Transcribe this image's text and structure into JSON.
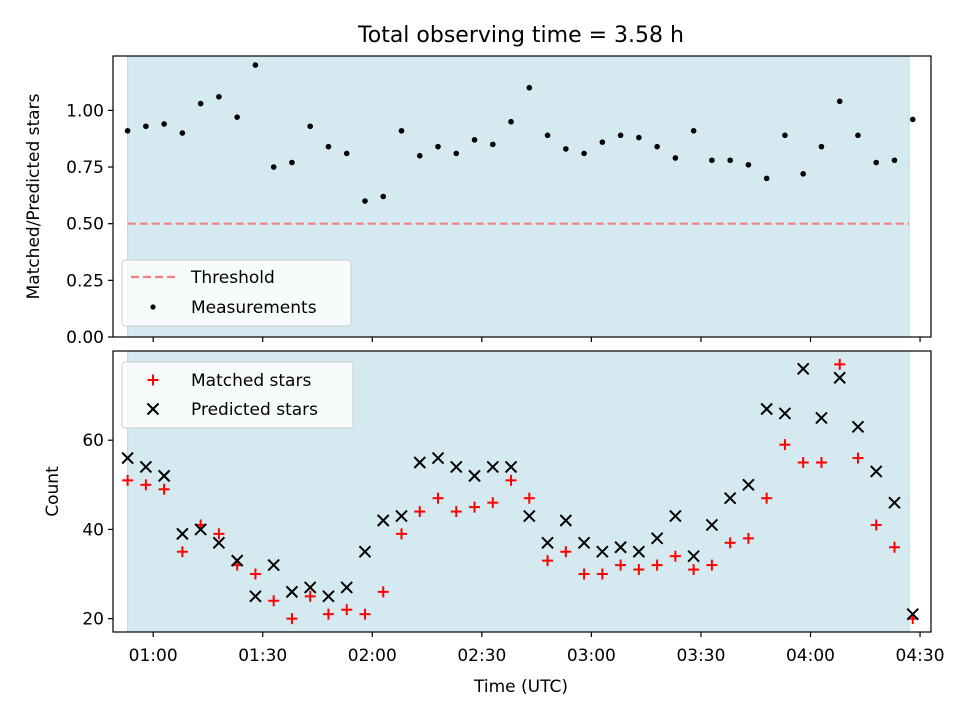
{
  "title": "Total observing time = 3.58 h",
  "colors": {
    "span": "#d4eaf0",
    "threshold": "#f08080",
    "measure": "#000000",
    "matched": "#ff0000",
    "predicted": "#000000"
  },
  "chart_data": [
    {
      "type": "scatter",
      "ylabel": "Matched/Predicted stars",
      "ylim": [
        0,
        1.24
      ],
      "yticks": [
        0.0,
        0.25,
        0.5,
        0.75,
        1.0
      ],
      "ytick_labels": [
        "0.00",
        "0.25",
        "0.50",
        "0.75",
        "1.00"
      ],
      "xlim": [
        "00:49",
        "04:33"
      ],
      "observing_span": [
        "00:53",
        "04:27"
      ],
      "threshold": 0.5,
      "legend_position": "lower-left",
      "legend": [
        "Threshold",
        "Measurements"
      ],
      "x": [
        "00:53",
        "00:58",
        "01:03",
        "01:08",
        "01:13",
        "01:18",
        "01:23",
        "01:28",
        "01:33",
        "01:38",
        "01:43",
        "01:48",
        "01:53",
        "01:58",
        "02:03",
        "02:08",
        "02:13",
        "02:18",
        "02:23",
        "02:28",
        "02:33",
        "02:38",
        "02:43",
        "02:48",
        "02:53",
        "02:58",
        "03:03",
        "03:08",
        "03:13",
        "03:18",
        "03:23",
        "03:28",
        "03:33",
        "03:38",
        "03:43",
        "03:48",
        "03:53",
        "03:58",
        "04:03",
        "04:08",
        "04:13",
        "04:18",
        "04:23",
        "04:28"
      ],
      "series": [
        {
          "name": "Measurements",
          "values": [
            0.91,
            0.93,
            0.94,
            0.9,
            1.03,
            1.06,
            0.97,
            1.2,
            0.75,
            0.77,
            0.93,
            0.84,
            0.81,
            0.6,
            0.62,
            0.91,
            0.8,
            0.84,
            0.81,
            0.87,
            0.85,
            0.95,
            1.1,
            0.89,
            0.83,
            0.81,
            0.86,
            0.89,
            0.88,
            0.84,
            0.79,
            0.91,
            0.78,
            0.78,
            0.76,
            0.7,
            0.89,
            0.72,
            0.84,
            1.04,
            0.89,
            0.77,
            0.78,
            0.96
          ]
        }
      ]
    },
    {
      "type": "scatter",
      "ylabel": "Count",
      "xlabel": "Time (UTC)",
      "ylim": [
        17,
        80
      ],
      "yticks": [
        20,
        40,
        60
      ],
      "xlim": [
        "00:49",
        "04:33"
      ],
      "xticks": [
        "01:00",
        "01:30",
        "02:00",
        "02:30",
        "03:00",
        "03:30",
        "04:00",
        "04:30"
      ],
      "legend_position": "upper-left",
      "legend": [
        "Matched stars",
        "Predicted stars"
      ],
      "x": [
        "00:53",
        "00:58",
        "01:03",
        "01:08",
        "01:13",
        "01:18",
        "01:23",
        "01:28",
        "01:33",
        "01:38",
        "01:43",
        "01:48",
        "01:53",
        "01:58",
        "02:03",
        "02:08",
        "02:13",
        "02:18",
        "02:23",
        "02:28",
        "02:33",
        "02:38",
        "02:43",
        "02:48",
        "02:53",
        "02:58",
        "03:03",
        "03:08",
        "03:13",
        "03:18",
        "03:23",
        "03:28",
        "03:33",
        "03:38",
        "03:43",
        "03:48",
        "03:53",
        "03:58",
        "04:03",
        "04:08",
        "04:13",
        "04:18",
        "04:23",
        "04:28"
      ],
      "series": [
        {
          "name": "Matched stars",
          "values": [
            51,
            50,
            49,
            35,
            41,
            39,
            32,
            30,
            24,
            20,
            25,
            21,
            22,
            21,
            26,
            39,
            44,
            47,
            44,
            45,
            46,
            51,
            47,
            33,
            35,
            30,
            30,
            32,
            31,
            32,
            34,
            31,
            32,
            37,
            38,
            47,
            59,
            55,
            55,
            77,
            56,
            41,
            36,
            20
          ]
        },
        {
          "name": "Predicted stars",
          "values": [
            56,
            54,
            52,
            39,
            40,
            37,
            33,
            25,
            32,
            26,
            27,
            25,
            27,
            35,
            42,
            43,
            55,
            56,
            54,
            52,
            54,
            54,
            43,
            37,
            42,
            37,
            35,
            36,
            35,
            38,
            43,
            34,
            41,
            47,
            50,
            67,
            66,
            76,
            65,
            74,
            63,
            53,
            46,
            21
          ]
        }
      ]
    }
  ]
}
